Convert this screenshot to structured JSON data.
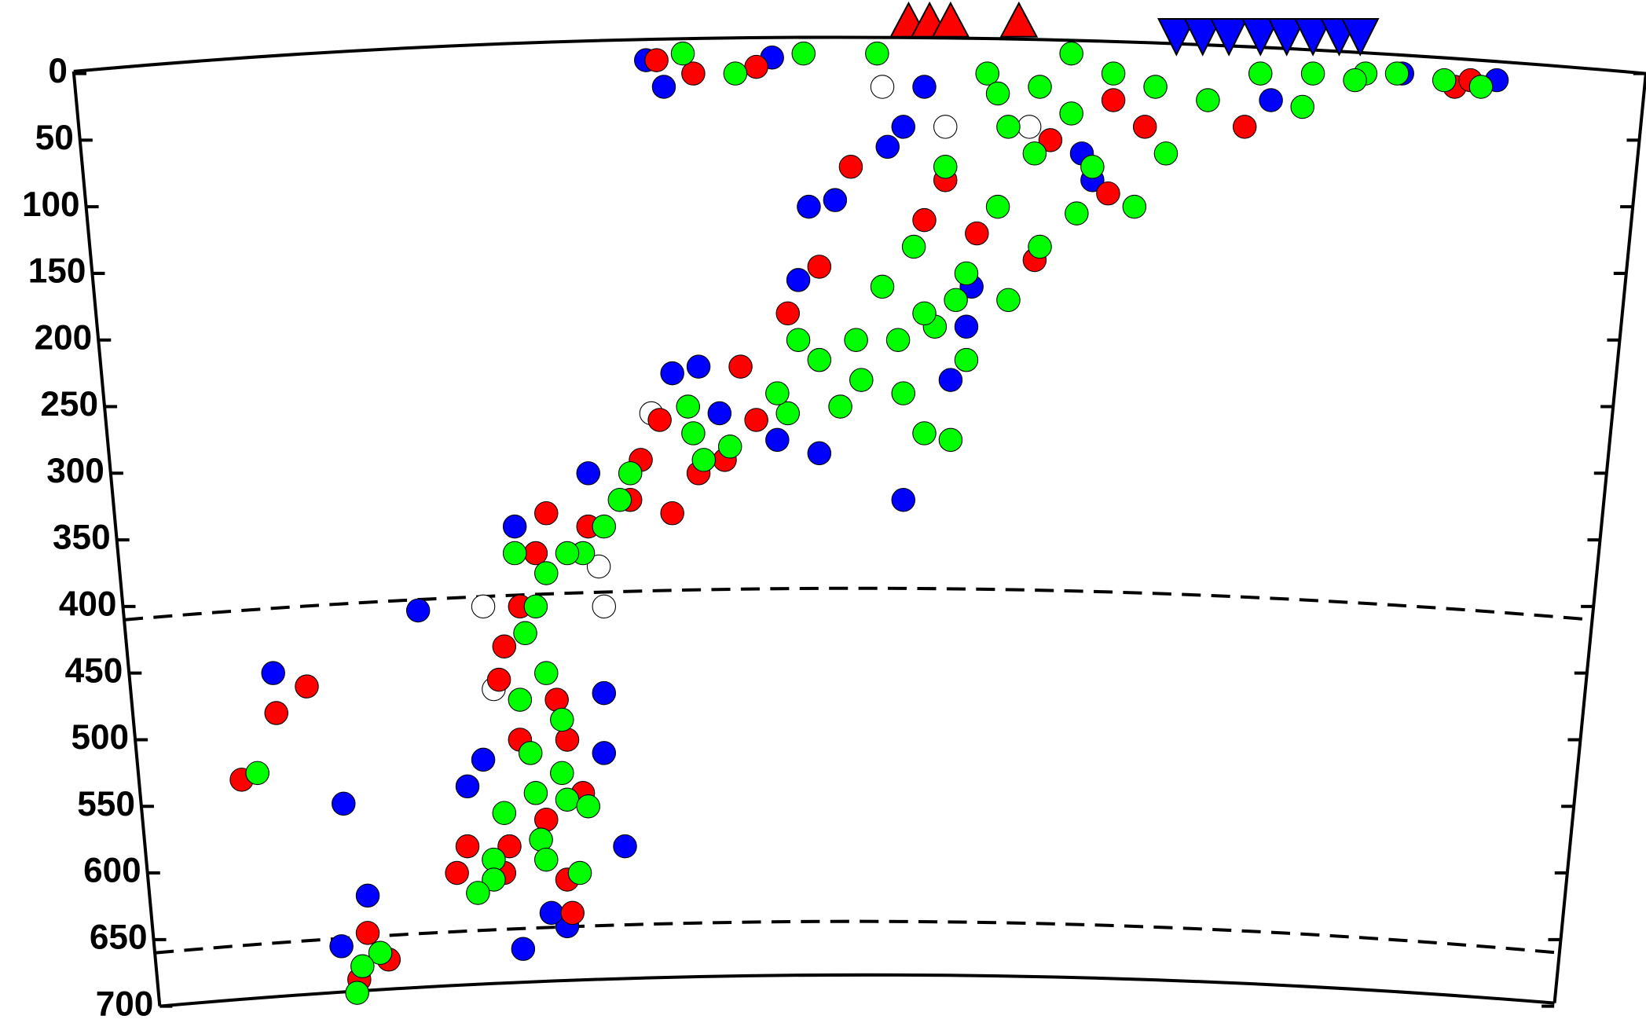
{
  "chart_data": {
    "type": "scatter",
    "xlim": [
      0,
      1567
    ],
    "ylim": [
      0,
      700
    ],
    "yticks": [
      0,
      50,
      100,
      150,
      200,
      250,
      300,
      350,
      400,
      450,
      500,
      550,
      600,
      650,
      700
    ],
    "reference_depths": [
      410,
      660
    ],
    "volcanoes": {
      "color": "#ff0000",
      "x": [
        865,
        885,
        905,
        970
      ]
    },
    "stations": {
      "color": "#0000ff",
      "x": [
        1120,
        1145,
        1170,
        1200,
        1225,
        1250,
        1275,
        1295
      ]
    },
    "series": [
      {
        "color": "#ffffff",
        "x": [
          840,
          900,
          980,
          620,
          575,
          460,
          470,
          570
        ],
        "values": [
          10,
          40,
          40,
          255,
          400,
          400,
          462,
          370
        ]
      },
      {
        "color": "#0000ff",
        "x": [
          615,
          632,
          735,
          880,
          860,
          845,
          770,
          795,
          760,
          920,
          905,
          640,
          665,
          685,
          740,
          780,
          560,
          490,
          398,
          260,
          575,
          460,
          445,
          575,
          327,
          595,
          350,
          325,
          498,
          540,
          525,
          1210,
          1335,
          1425,
          1030,
          1040,
          860,
          925
        ],
        "values": [
          -10,
          10,
          -12,
          10,
          40,
          55,
          100,
          95,
          155,
          190,
          230,
          225,
          220,
          255,
          275,
          285,
          300,
          340,
          403,
          450,
          465,
          515,
          535,
          510,
          548,
          580,
          617,
          655,
          657,
          640,
          630,
          20,
          0,
          5,
          60,
          80,
          320,
          160
        ]
      },
      {
        "color": "#ff0000",
        "x": [
          625,
          660,
          720,
          1385,
          1185,
          1400,
          810,
          780,
          750,
          705,
          720,
          628,
          610,
          640,
          665,
          690,
          600,
          520,
          510,
          560,
          495,
          480,
          475,
          530,
          540,
          495,
          555,
          520,
          485,
          445,
          435,
          480,
          540,
          545,
          292,
          263,
          230,
          342,
          370,
          350,
          985,
          1055,
          930,
          880,
          1000,
          1090,
          1060,
          900
        ],
        "values": [
          -10,
          0,
          -5,
          10,
          40,
          5,
          70,
          145,
          180,
          220,
          260,
          260,
          290,
          330,
          300,
          290,
          320,
          330,
          360,
          340,
          400,
          430,
          455,
          470,
          500,
          500,
          540,
          560,
          580,
          580,
          600,
          600,
          605,
          630,
          460,
          480,
          530,
          680,
          665,
          645,
          140,
          90,
          120,
          110,
          50,
          40,
          20,
          80
        ]
      },
      {
        "color": "#00ff00",
        "x": [
          650,
          700,
          765,
          835,
          940,
          990,
          1020,
          1060,
          1100,
          1150,
          1200,
          1250,
          1300,
          1330,
          1375,
          1410,
          960,
          985,
          1040,
          1080,
          1110,
          900,
          950,
          870,
          920,
          840,
          960,
          990,
          1025,
          855,
          890,
          760,
          780,
          820,
          860,
          800,
          750,
          880,
          910,
          880,
          905,
          815,
          740,
          920,
          655,
          660,
          670,
          695,
          600,
          590,
          575,
          555,
          520,
          540,
          490,
          510,
          500,
          520,
          495,
          535,
          505,
          510,
          540,
          560,
          480,
          515,
          470,
          470,
          455,
          520,
          552,
          535,
          245,
          362,
          345,
          340,
          1240,
          1290,
          1020,
          950
        ],
        "values": [
          -15,
          0,
          -15,
          -15,
          0,
          10,
          -15,
          0,
          10,
          20,
          0,
          0,
          0,
          0,
          5,
          10,
          40,
          60,
          70,
          100,
          60,
          70,
          100,
          130,
          150,
          160,
          170,
          130,
          105,
          200,
          190,
          200,
          215,
          230,
          240,
          250,
          255,
          270,
          170,
          180,
          275,
          200,
          240,
          215,
          250,
          270,
          290,
          280,
          300,
          320,
          340,
          360,
          375,
          360,
          360,
          400,
          420,
          450,
          470,
          485,
          510,
          540,
          545,
          550,
          555,
          575,
          590,
          605,
          615,
          590,
          600,
          525,
          525,
          660,
          670,
          690,
          25,
          5,
          30,
          15
        ]
      }
    ]
  }
}
